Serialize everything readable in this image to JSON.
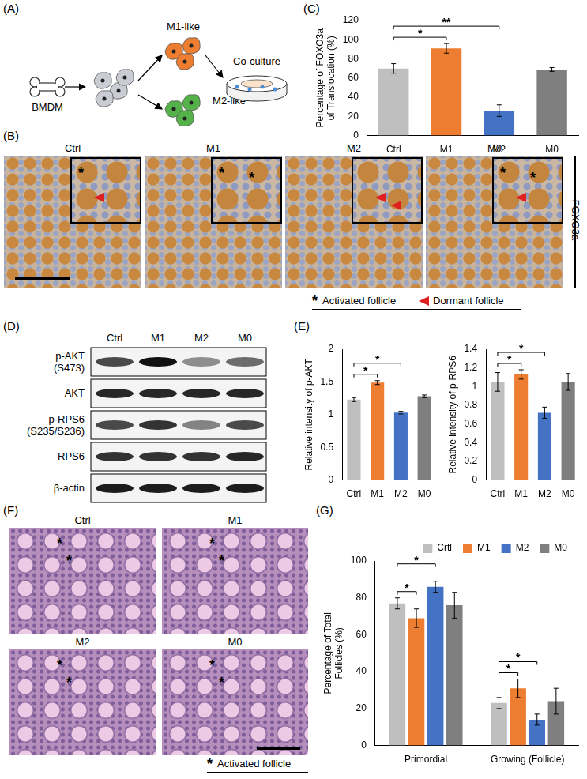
{
  "panel_labels": [
    "(A)",
    "(B)",
    "(C)",
    "(D)",
    "(E)",
    "(F)",
    "(G)"
  ],
  "diagram_A": {
    "source": "BMDM",
    "states": [
      "M1-like",
      "M2-like"
    ],
    "target": "Co-culture"
  },
  "panel_B": {
    "columns": [
      {
        "label": "Ctrl",
        "activated_marks": 1,
        "dormant_marks": 1
      },
      {
        "label": "M1",
        "activated_marks": 2,
        "dormant_marks": 0
      },
      {
        "label": "M2",
        "activated_marks": 0,
        "dormant_marks": 2
      },
      {
        "label": "M0",
        "activated_marks": 2,
        "dormant_marks": 1
      }
    ],
    "stain": "FOXO3a",
    "legend_items": [
      {
        "symbol": "*",
        "label": "Activated follicle"
      },
      {
        "marker": "triangle",
        "color": "#e02020",
        "label": "Dormant follicle"
      }
    ]
  },
  "panel_D": {
    "lanes": [
      "Ctrl",
      "M1",
      "M2",
      "M0"
    ],
    "rows": [
      [
        "p-AKT",
        "(S473)"
      ],
      [
        "AKT"
      ],
      [
        "p-RPS6",
        "(S235/S236)"
      ],
      [
        "RPS6"
      ],
      [
        "β-actin"
      ]
    ]
  },
  "panel_F": {
    "columns": [
      {
        "label": "Ctrl",
        "activated_marks": 2
      },
      {
        "label": "M1",
        "activated_marks": 2
      },
      {
        "label": "M2",
        "activated_marks": 2
      },
      {
        "label": "M0",
        "activated_marks": 2
      }
    ],
    "legend_item": {
      "symbol": "*",
      "label": "Activated follicle"
    }
  },
  "chart_data": [
    {
      "type": "bar",
      "ylabel": [
        "Percentage of FOXO3a",
        "of Translocation (%)"
      ],
      "categories": [
        "Ctrl",
        "M1",
        "M2",
        "M0"
      ],
      "values": [
        70,
        91,
        26,
        69
      ],
      "errors": [
        5,
        5,
        6,
        2
      ],
      "colors": [
        "#bfbfbf",
        "#ed7d31",
        "#4472c4",
        "#7f7f7f"
      ],
      "ylim": [
        0,
        120
      ],
      "yticks": [
        0,
        20,
        40,
        60,
        80,
        100,
        120
      ],
      "grid": false,
      "significance": [
        {
          "from": "Ctrl",
          "to": "M1",
          "label": "*"
        },
        {
          "from": "Ctrl",
          "to": "M2",
          "label": "**"
        }
      ]
    },
    {
      "type": "bar",
      "ylabel": "Relative intensity of p-AKT",
      "categories": [
        "Ctrl",
        "M1",
        "M2",
        "M0"
      ],
      "values": [
        1.23,
        1.49,
        1.03,
        1.28
      ],
      "errors": [
        0.03,
        0.03,
        0.02,
        0.02
      ],
      "colors": [
        "#bfbfbf",
        "#ed7d31",
        "#4472c4",
        "#7f7f7f"
      ],
      "ylim": [
        0,
        2
      ],
      "yticks": [
        0,
        0.5,
        1,
        1.5,
        2
      ],
      "grid": false,
      "significance": [
        {
          "from": "Ctrl",
          "to": "M1",
          "label": "*"
        },
        {
          "from": "Ctrl",
          "to": "M2",
          "label": "*"
        }
      ]
    },
    {
      "type": "bar",
      "ylabel": "Relative intensity of p-RPS6",
      "categories": [
        "Ctrl",
        "M1",
        "M2",
        "M0"
      ],
      "values": [
        1.05,
        1.13,
        0.72,
        1.05
      ],
      "errors": [
        0.1,
        0.05,
        0.06,
        0.09
      ],
      "colors": [
        "#bfbfbf",
        "#ed7d31",
        "#4472c4",
        "#7f7f7f"
      ],
      "ylim": [
        0,
        1.4
      ],
      "yticks": [
        0,
        0.2,
        0.4,
        0.6,
        0.8,
        1,
        1.2,
        1.4
      ],
      "grid": false,
      "significance": [
        {
          "from": "Ctrl",
          "to": "M1",
          "label": "*"
        },
        {
          "from": "Ctrl",
          "to": "M2",
          "label": "*"
        }
      ]
    },
    {
      "type": "bar",
      "ylabel": [
        "Percentage of Total",
        "Follicles (%)"
      ],
      "categories": [
        "Primordial",
        "Growing (Follicle)"
      ],
      "series": [
        {
          "name": "Crtl",
          "color": "#bfbfbf",
          "values": [
            77,
            23
          ],
          "errors": [
            3,
            3
          ]
        },
        {
          "name": "M1",
          "color": "#ed7d31",
          "values": [
            69,
            31
          ],
          "errors": [
            5,
            5
          ]
        },
        {
          "name": "M2",
          "color": "#4472c4",
          "values": [
            86,
            14
          ],
          "errors": [
            3,
            3
          ]
        },
        {
          "name": "M0",
          "color": "#7f7f7f",
          "values": [
            76,
            24
          ],
          "errors": [
            7,
            7
          ]
        }
      ],
      "ylim": [
        0,
        100
      ],
      "yticks": [
        0,
        20,
        40,
        60,
        80,
        100
      ],
      "grid": false,
      "legend": "top-right",
      "significance": [
        {
          "category": "Primordial",
          "from": "Crtl",
          "to": "M1",
          "label": "*"
        },
        {
          "category": "Primordial",
          "from": "Crtl",
          "to": "M2",
          "label": "*"
        },
        {
          "category": "Growing (Follicle)",
          "from": "Crtl",
          "to": "M1",
          "label": "*"
        },
        {
          "category": "Growing (Follicle)",
          "from": "Crtl",
          "to": "M2",
          "label": "*"
        }
      ]
    }
  ]
}
